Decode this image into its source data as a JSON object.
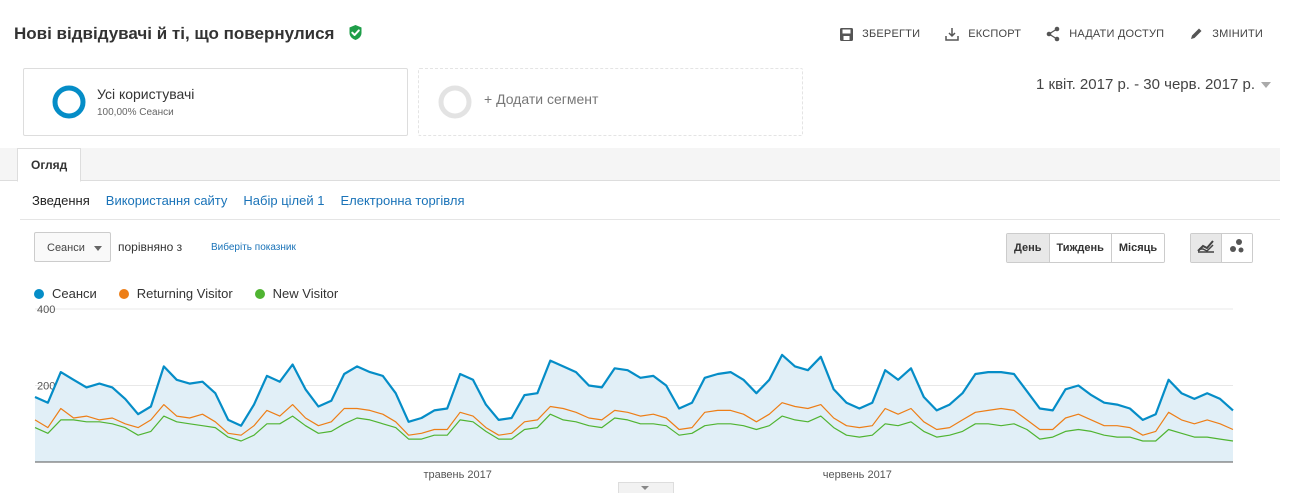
{
  "header": {
    "title": "Нові відвідувачі й ті, що повернулися",
    "actions": {
      "save": "ЗБЕРЕГТИ",
      "export": "ЕКСПОРТ",
      "share": "НАДАТИ ДОСТУП",
      "edit": "ЗМІНИТИ"
    }
  },
  "segments": {
    "primary": {
      "name": "Усі користувачі",
      "detail": "100,00% Сеанси"
    },
    "add_label": "+ Додати сегмент"
  },
  "date_range": "1 квіт. 2017 р. - 30 черв. 2017 р.",
  "tabs": {
    "overview": "Огляд"
  },
  "subnav": {
    "summary": "Зведення",
    "site_usage": "Використання сайту",
    "goal_set": "Набір цілей 1",
    "ecommerce": "Електронна торгівля"
  },
  "controls": {
    "metric": "Сеанси",
    "compare_text": "порівняно з",
    "choose_metric": "Виберіть показник",
    "period": {
      "day": "День",
      "week": "Тиждень",
      "month": "Місяць"
    }
  },
  "colors": {
    "sessions": "#058dc7",
    "returning": "#ed7e17",
    "new": "#50b432",
    "verified": "#1e9e49"
  },
  "icons": {
    "verified": "check-circle-icon",
    "save": "save-icon",
    "export": "download-icon",
    "share": "share-icon",
    "edit": "pencil-icon",
    "line_chart": "line-chart-icon",
    "motion_chart": "bubble-chart-icon"
  },
  "chart_data": {
    "type": "line",
    "y_ticks": [
      "400",
      "200"
    ],
    "ylim": [
      0,
      400
    ],
    "x_tick_labels": [
      "травень 2017",
      "червень 2017"
    ],
    "series": [
      {
        "name": "Сеанси",
        "values": [
          170,
          155,
          235,
          215,
          195,
          205,
          195,
          165,
          125,
          145,
          250,
          215,
          205,
          210,
          180,
          110,
          95,
          150,
          225,
          210,
          255,
          190,
          145,
          160,
          230,
          250,
          235,
          225,
          180,
          105,
          115,
          135,
          140,
          230,
          215,
          150,
          110,
          115,
          175,
          180,
          265,
          250,
          235,
          200,
          195,
          245,
          240,
          220,
          225,
          200,
          140,
          155,
          220,
          230,
          235,
          215,
          180,
          215,
          280,
          250,
          240,
          275,
          190,
          155,
          140,
          155,
          240,
          215,
          245,
          170,
          135,
          150,
          180,
          230,
          235,
          235,
          230,
          185,
          140,
          135,
          190,
          200,
          175,
          155,
          150,
          140,
          110,
          125,
          215,
          180,
          165,
          180,
          165,
          135
        ]
      },
      {
        "name": "Returning Visitor",
        "values": [
          110,
          90,
          140,
          115,
          120,
          110,
          115,
          100,
          90,
          110,
          150,
          120,
          115,
          125,
          105,
          75,
          70,
          95,
          135,
          120,
          150,
          115,
          95,
          105,
          140,
          140,
          135,
          125,
          105,
          70,
          75,
          85,
          85,
          130,
          120,
          90,
          70,
          75,
          105,
          110,
          145,
          140,
          130,
          115,
          110,
          135,
          130,
          120,
          125,
          115,
          85,
          90,
          130,
          135,
          135,
          125,
          105,
          125,
          155,
          145,
          140,
          150,
          115,
          95,
          90,
          95,
          140,
          125,
          140,
          105,
          85,
          90,
          110,
          130,
          135,
          140,
          135,
          110,
          85,
          85,
          115,
          125,
          110,
          95,
          95,
          90,
          70,
          80,
          130,
          110,
          100,
          110,
          100,
          85
        ]
      },
      {
        "name": "New Visitor",
        "values": [
          90,
          75,
          110,
          110,
          105,
          105,
          100,
          90,
          70,
          80,
          120,
          105,
          100,
          95,
          90,
          65,
          55,
          70,
          100,
          100,
          120,
          95,
          75,
          80,
          100,
          115,
          110,
          100,
          90,
          60,
          60,
          70,
          70,
          110,
          105,
          80,
          60,
          60,
          85,
          90,
          125,
          110,
          105,
          95,
          90,
          115,
          110,
          100,
          100,
          95,
          70,
          75,
          95,
          100,
          100,
          95,
          85,
          95,
          120,
          110,
          105,
          120,
          90,
          70,
          65,
          70,
          100,
          95,
          105,
          80,
          65,
          70,
          80,
          100,
          100,
          95,
          100,
          85,
          60,
          65,
          80,
          85,
          80,
          70,
          65,
          65,
          55,
          55,
          85,
          75,
          65,
          65,
          60,
          55
        ]
      }
    ]
  }
}
